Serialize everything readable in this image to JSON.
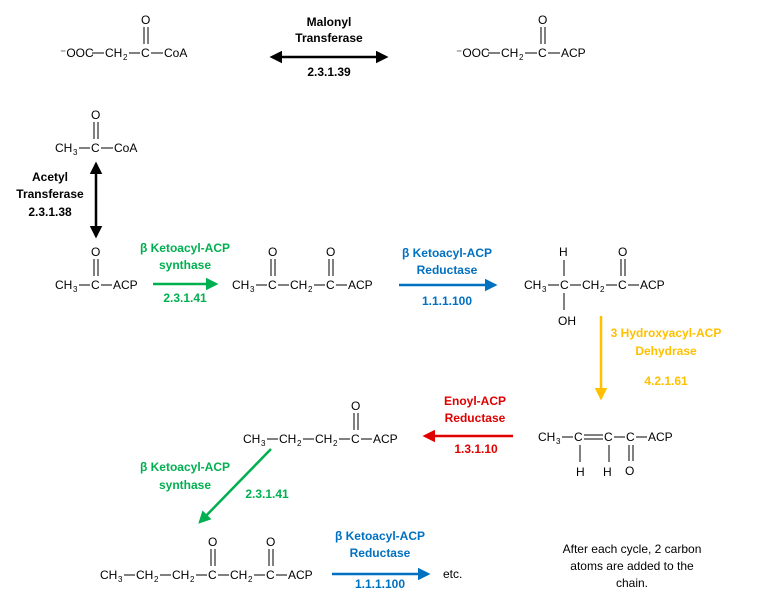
{
  "colors": {
    "black": "#000000",
    "green": "#00b050",
    "blue": "#0070c0",
    "yellow": "#ffc000",
    "red": "#e00000"
  },
  "molecules": {
    "malonyl_coa": {
      "pre": "⁻OOC",
      "ch2": "CH",
      "sub": "2",
      "c": "C",
      "end": "CoA",
      "o": "O"
    },
    "malonyl_acp": {
      "pre": "⁻OOC",
      "ch2": "CH",
      "sub": "2",
      "c": "C",
      "end": "ACP",
      "o": "O"
    },
    "acetyl_coa": {
      "ch3": "CH",
      "sub": "3",
      "c": "C",
      "end": "CoA",
      "o": "O"
    },
    "acetyl_acp": {
      "ch3": "CH",
      "sub": "3",
      "c": "C",
      "end": "ACP",
      "o": "O"
    },
    "acetoacetyl_acp": {
      "ch3": "CH",
      "sub3": "3",
      "c": "C",
      "ch2": "CH",
      "sub2": "2",
      "end": "ACP",
      "o": "O"
    },
    "hydroxybutyryl_acp": {
      "ch3": "CH",
      "sub3": "3",
      "c": "C",
      "ch2": "CH",
      "sub2": "2",
      "end": "ACP",
      "o": "O",
      "h": "H",
      "oh": "OH"
    },
    "crotonyl_acp": {
      "ch3": "CH",
      "sub3": "3",
      "c": "C",
      "end": "ACP",
      "o": "O",
      "h": "H"
    },
    "butyryl_acp": {
      "ch3": "CH",
      "sub3": "3",
      "ch2": "CH",
      "sub2": "2",
      "c": "C",
      "end": "ACP",
      "o": "O"
    },
    "ketohexanoyl_acp": {
      "ch3": "CH",
      "sub3": "3",
      "ch2": "CH",
      "sub2": "2",
      "c": "C",
      "end": "ACP",
      "o": "O"
    }
  },
  "enzymes": {
    "malonyl_transferase": {
      "line1": "Malonyl",
      "line2": "Transferase",
      "ec": "2.3.1.39"
    },
    "acetyl_transferase": {
      "line1": "Acetyl",
      "line2": "Transferase",
      "ec": "2.3.1.38"
    },
    "ketoacyl_synthase_1": {
      "line1": "β Ketoacyl-ACP",
      "line2": "synthase",
      "ec": "2.3.1.41"
    },
    "ketoacyl_reductase_1": {
      "line1": "β Ketoacyl-ACP",
      "line2": "Reductase",
      "ec": "1.1.1.100"
    },
    "hydroxyacyl_dehydrase": {
      "line1": "3 Hydroxyacyl-ACP",
      "line2": "Dehydrase",
      "ec": "4.2.1.61"
    },
    "enoyl_reductase": {
      "line1": "Enoyl-ACP",
      "line2": "Reductase",
      "ec": "1.3.1.10"
    },
    "ketoacyl_synthase_2": {
      "line1": "β Ketoacyl-ACP",
      "line2": "synthase",
      "ec": "2.3.1.41"
    },
    "ketoacyl_reductase_2": {
      "line1": "β Ketoacyl-ACP",
      "line2": "Reductase",
      "ec": "1.1.1.100"
    }
  },
  "etc_label": "etc.",
  "note": {
    "line1": "After each cycle, 2 carbon",
    "line2": "atoms are added to the",
    "line3": "chain."
  }
}
